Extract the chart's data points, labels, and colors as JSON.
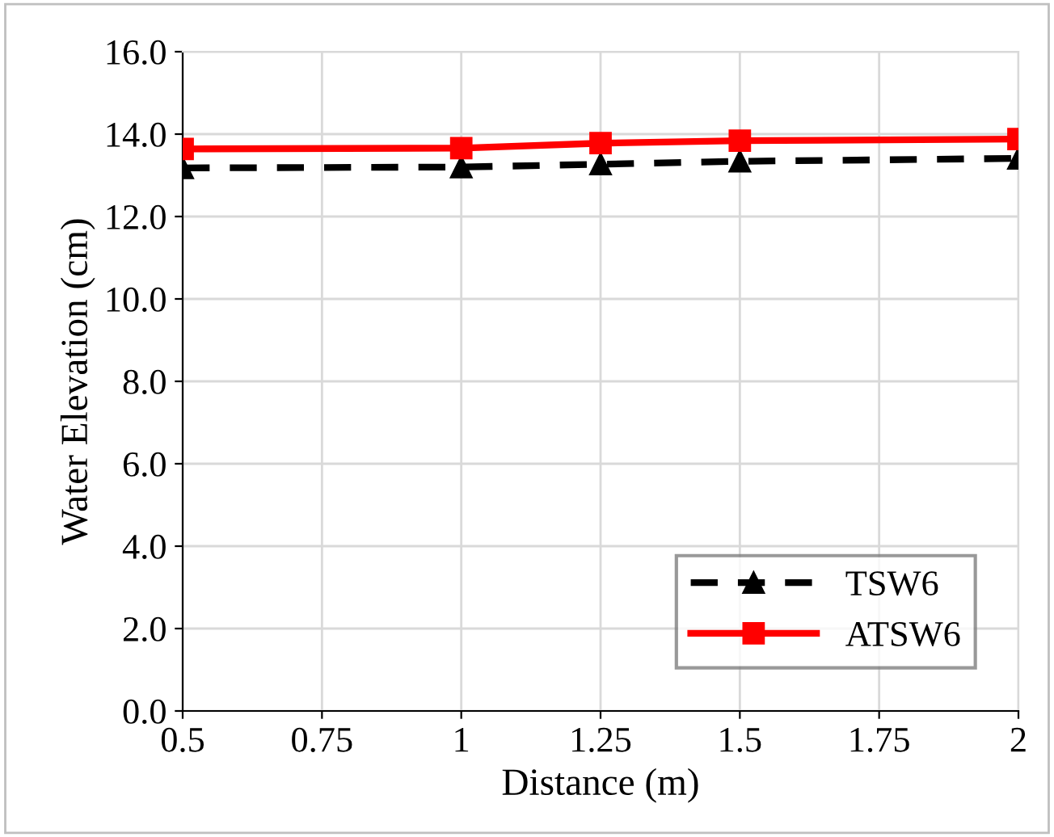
{
  "chart_data": {
    "type": "line",
    "xlabel": "Distance (m)",
    "ylabel": "Water Elevation (cm)",
    "x": [
      0.5,
      1,
      1.25,
      1.5,
      2
    ],
    "series": [
      {
        "name": "TSW6",
        "color": "#000000",
        "marker": "triangle",
        "line_style": "dashed",
        "values": [
          13.18,
          13.2,
          13.27,
          13.34,
          13.41
        ]
      },
      {
        "name": "ATSW6",
        "color": "#ff0000",
        "marker": "square",
        "line_style": "solid",
        "values": [
          13.64,
          13.66,
          13.78,
          13.84,
          13.88
        ]
      }
    ],
    "xlim": [
      0.5,
      2
    ],
    "xticks": [
      0.5,
      0.75,
      1,
      1.25,
      1.5,
      1.75,
      2
    ],
    "ylim": [
      0,
      16
    ],
    "yticks": [
      {
        "value": 0,
        "label": "0.0"
      },
      {
        "value": 2,
        "label": "2.0"
      },
      {
        "value": 4,
        "label": "4.0"
      },
      {
        "value": 6,
        "label": "6.0"
      },
      {
        "value": 8,
        "label": "8.0"
      },
      {
        "value": 10,
        "label": "10.0"
      },
      {
        "value": 12,
        "label": "12.0"
      },
      {
        "value": 14,
        "label": "14.0"
      },
      {
        "value": 16,
        "label": "16.0"
      }
    ],
    "grid": true,
    "legend": "bottom right"
  }
}
